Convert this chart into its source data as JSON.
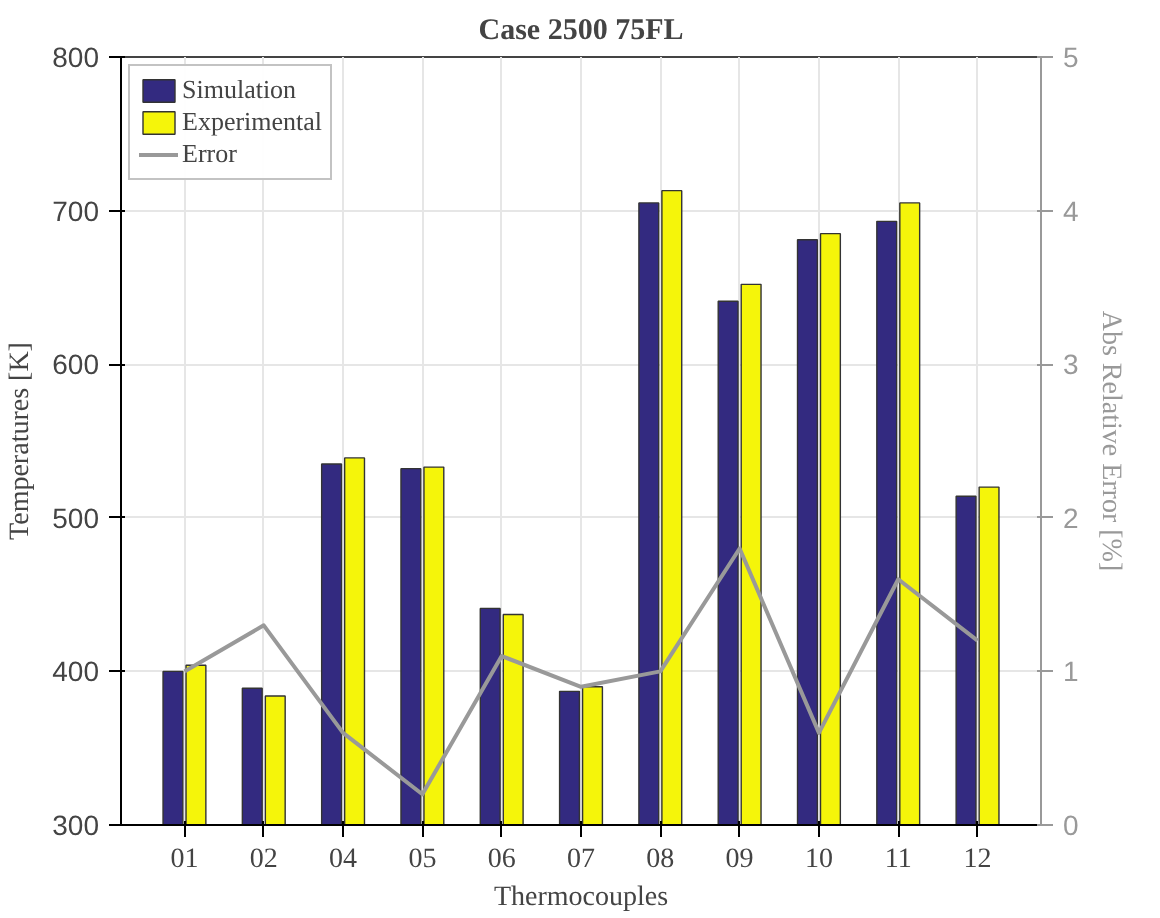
{
  "chart_data": {
    "type": "bar",
    "title": "Case 2500 75FL",
    "xlabel": "Thermocouples",
    "ylabel": "Temperatures [K]",
    "y2label": "Abs Relative Error [%]",
    "categories": [
      "01",
      "02",
      "04",
      "05",
      "06",
      "07",
      "08",
      "09",
      "10",
      "11",
      "12"
    ],
    "series": [
      {
        "name": "Simulation",
        "color": "#332a80",
        "values": [
          400,
          389,
          535,
          532,
          441,
          387,
          705,
          641,
          681,
          693,
          514
        ]
      },
      {
        "name": "Experimental",
        "color": "#f5f50a",
        "values": [
          404,
          384,
          539,
          533,
          437,
          390,
          713,
          652,
          685,
          705,
          520
        ]
      },
      {
        "name": "Error",
        "type": "line",
        "axis": "y2",
        "color": "#999999",
        "values": [
          1.0,
          1.3,
          0.6,
          0.2,
          1.1,
          0.9,
          1.0,
          1.8,
          0.6,
          1.6,
          1.2
        ]
      }
    ],
    "ylim": [
      300,
      800
    ],
    "yticks": [
      300,
      400,
      500,
      600,
      700,
      800
    ],
    "y2lim": [
      0,
      5
    ],
    "y2ticks": [
      0,
      1,
      2,
      3,
      4,
      5
    ],
    "grid": true,
    "legend": "top left"
  }
}
